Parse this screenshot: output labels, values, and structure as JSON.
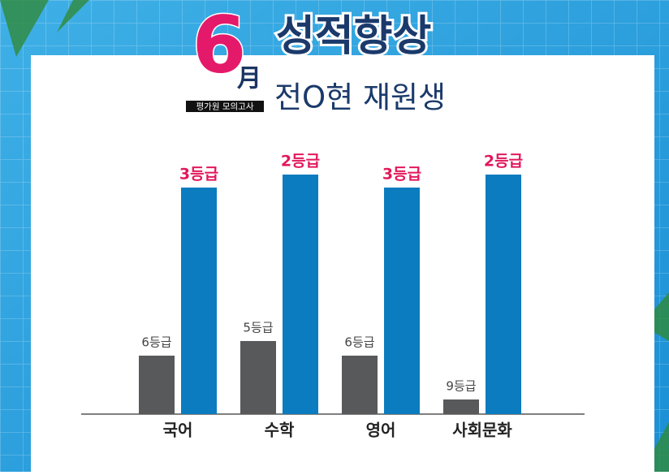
{
  "header": {
    "month": "6",
    "month_char": "月",
    "exam": "평가원 모의고사",
    "title": "성적향상",
    "subtitle": "전O현 재원생"
  },
  "chart_data": {
    "type": "bar",
    "categories": [
      "국어",
      "수학",
      "영어",
      "사회문화"
    ],
    "series": [
      {
        "color": "#58595b",
        "label_color": "#444444",
        "values": [
          6,
          5,
          6,
          9
        ],
        "value_labels": [
          "6등급",
          "5등급",
          "6등급",
          "9등급"
        ]
      },
      {
        "color": "#0b7cbf",
        "label_color": "#e2185b",
        "values": [
          3,
          2,
          3,
          2
        ],
        "value_labels": [
          "3등급",
          "2등급",
          "3등급",
          "2등급"
        ]
      }
    ]
  }
}
